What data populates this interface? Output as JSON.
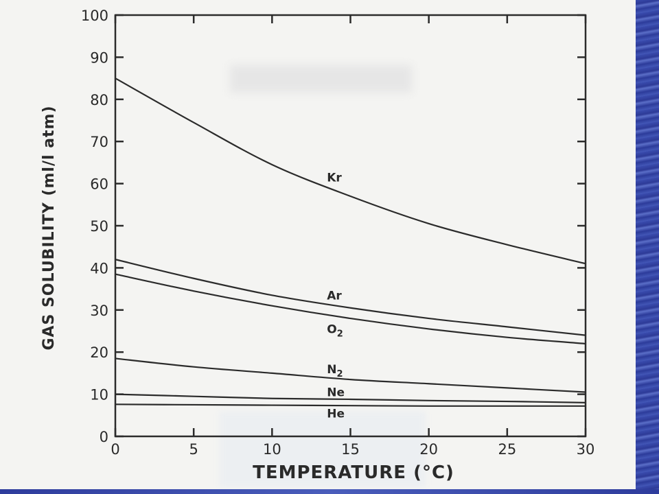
{
  "chart_data": {
    "type": "line",
    "title": "",
    "xlabel": "TEMPERATURE (°C)",
    "ylabel": "GAS SOLUBILITY (ml/l atm)",
    "xlim": [
      0,
      30
    ],
    "ylim": [
      0,
      100
    ],
    "xticks": [
      0,
      5,
      10,
      15,
      20,
      25,
      30
    ],
    "yticks": [
      0,
      10,
      20,
      30,
      40,
      50,
      60,
      70,
      80,
      90,
      100
    ],
    "grid": false,
    "legend": "none",
    "x": [
      0,
      5,
      10,
      15,
      20,
      25,
      30
    ],
    "series": [
      {
        "name": "Kr",
        "values": [
          85,
          74.5,
          64.5,
          57,
          50.5,
          45.5,
          41
        ]
      },
      {
        "name": "Ar",
        "values": [
          42,
          37.5,
          33.5,
          30.5,
          28,
          26,
          24
        ]
      },
      {
        "name": "O2",
        "values": [
          38.5,
          34.5,
          31,
          28,
          25.5,
          23.5,
          22
        ]
      },
      {
        "name": "N2",
        "values": [
          18.5,
          16.5,
          15,
          13.5,
          12.5,
          11.5,
          10.5
        ]
      },
      {
        "name": "Ne",
        "values": [
          10,
          9.5,
          9,
          8.8,
          8.5,
          8.3,
          8
        ]
      },
      {
        "name": "He",
        "values": [
          7.6,
          7.5,
          7.4,
          7.3,
          7.2,
          7.2,
          7.2
        ]
      }
    ],
    "curve_labels": [
      {
        "series": "Kr",
        "text": "Kr",
        "at": [
          13.5,
          60.5
        ]
      },
      {
        "series": "Ar",
        "text": "Ar",
        "at": [
          13.5,
          32.5
        ]
      },
      {
        "series": "O2",
        "text": "O",
        "sub": "2",
        "at": [
          13.5,
          24.5
        ]
      },
      {
        "series": "N2",
        "text": "N",
        "sub": "2",
        "at": [
          13.5,
          15
        ]
      },
      {
        "series": "Ne",
        "text": "Ne",
        "at": [
          13.5,
          9.5
        ]
      },
      {
        "series": "He",
        "text": "He",
        "at": [
          13.5,
          4.5
        ]
      }
    ]
  }
}
